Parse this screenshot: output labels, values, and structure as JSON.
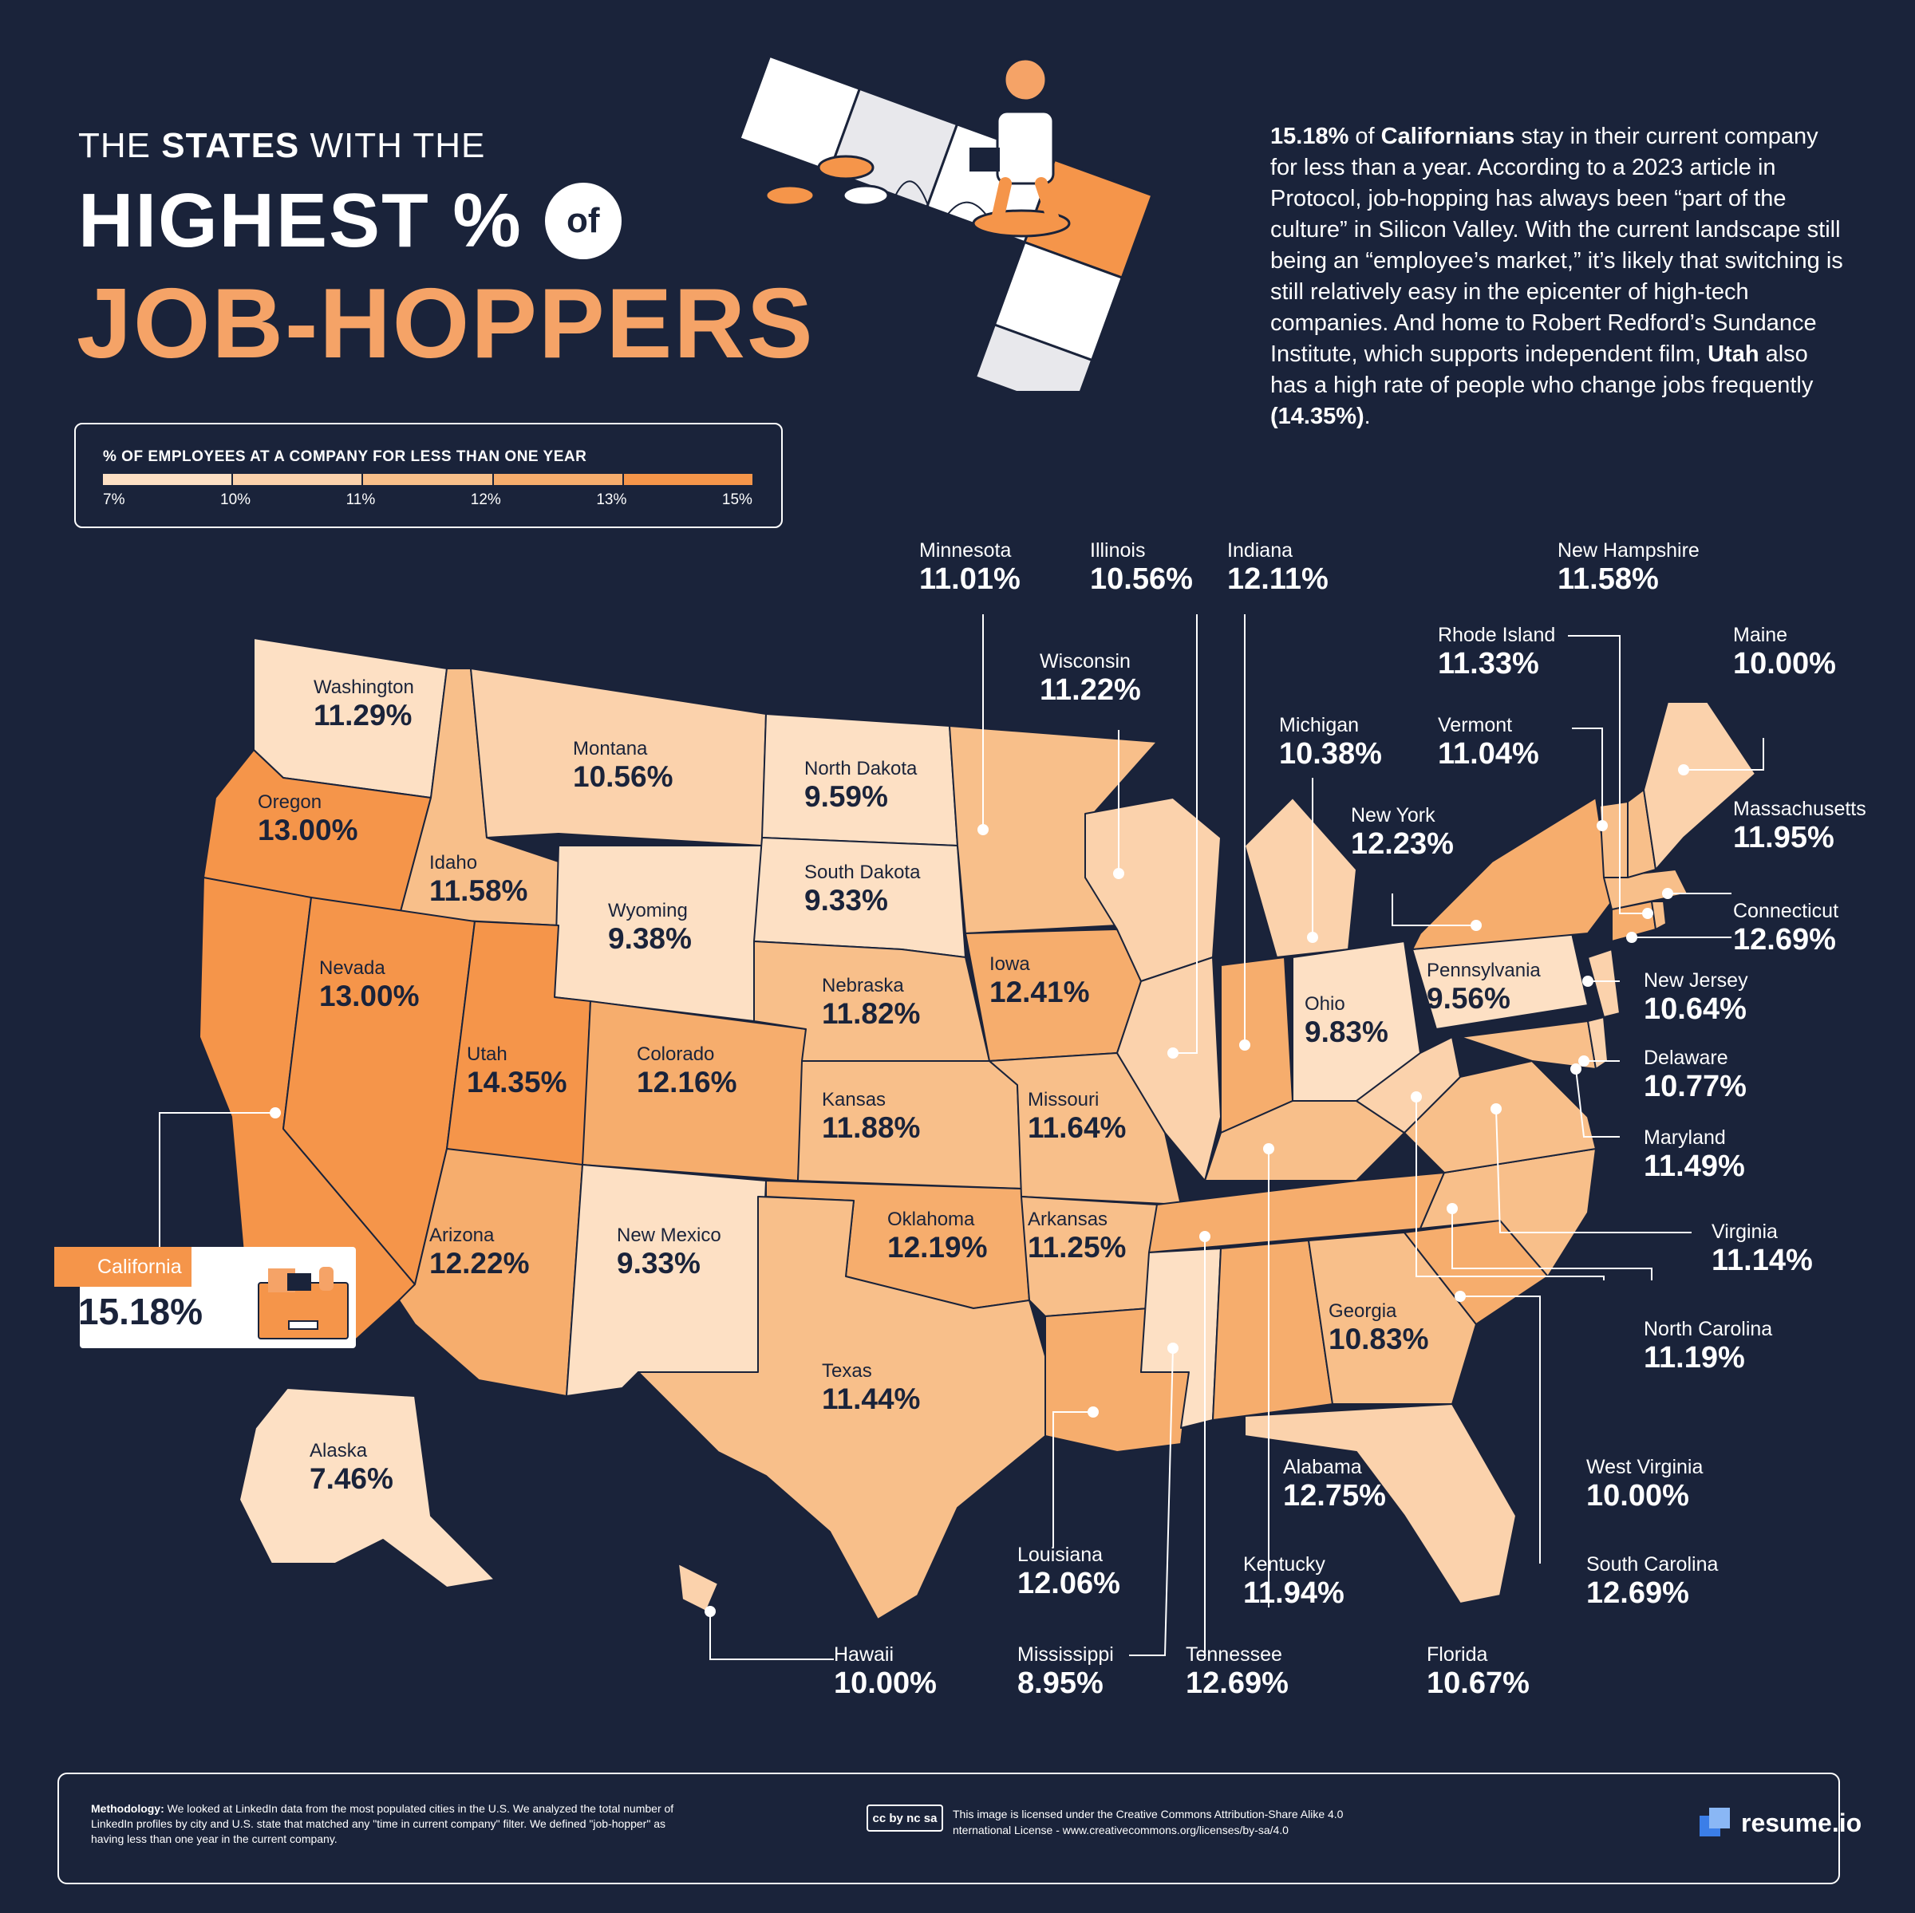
{
  "title": {
    "line1_pre": "THE ",
    "line1_bold": "STATES",
    "line1_post": " WITH THE",
    "line2": "HIGHEST %",
    "line2_circle": "of",
    "line3": "JOB-HOPPERS"
  },
  "intro": {
    "p1_bold": "15.18%",
    "p2": " of ",
    "p3_bold": "Californians",
    "p4": " stay in their current company for less than a year. According to a 2023 article in Protocol, job-hopping has always been “part of the culture” in Silicon Valley. With the current landscape still being an “employee’s market,” it’s likely that switching is still relatively easy in the epicenter of high-tech companies. And home to Robert Redford’s Sundance Institute, which supports independent film, ",
    "p5_bold": "Utah",
    "p6": " also has a high rate of people who change jobs frequently ",
    "p7_bold": "(14.35%)",
    "p8": "."
  },
  "legend": {
    "title": "% OF EMPLOYEES AT A COMPANY FOR LESS THAN ONE YEAR",
    "ticks": [
      "7%",
      "10%",
      "11%",
      "12%",
      "13%",
      "15%"
    ],
    "colors": [
      "#fde0c4",
      "#fbd2ac",
      "#f8bf8a",
      "#f6ad6d",
      "#f5954a"
    ]
  },
  "colors": {
    "background": "#1a233a",
    "accent_orange": "#f5a367",
    "darkest_orange": "#f5954a"
  },
  "states": {
    "washington": {
      "name": "Washington",
      "value": "11.29%"
    },
    "oregon": {
      "name": "Oregon",
      "value": "13.00%"
    },
    "idaho": {
      "name": "Idaho",
      "value": "11.58%"
    },
    "montana": {
      "name": "Montana",
      "value": "10.56%"
    },
    "north_dakota": {
      "name": "North Dakota",
      "value": "9.59%"
    },
    "south_dakota": {
      "name": "South Dakota",
      "value": "9.33%"
    },
    "wyoming": {
      "name": "Wyoming",
      "value": "9.38%"
    },
    "nevada": {
      "name": "Nevada",
      "value": "13.00%"
    },
    "utah": {
      "name": "Utah",
      "value": "14.35%"
    },
    "colorado": {
      "name": "Colorado",
      "value": "12.16%"
    },
    "nebraska": {
      "name": "Nebraska",
      "value": "11.82%"
    },
    "iowa": {
      "name": "Iowa",
      "value": "12.41%"
    },
    "kansas": {
      "name": "Kansas",
      "value": "11.88%"
    },
    "missouri": {
      "name": "Missouri",
      "value": "11.64%"
    },
    "arizona": {
      "name": "Arizona",
      "value": "12.22%"
    },
    "new_mexico": {
      "name": "New Mexico",
      "value": "9.33%"
    },
    "oklahoma": {
      "name": "Oklahoma",
      "value": "12.19%"
    },
    "arkansas": {
      "name": "Arkansas",
      "value": "11.25%"
    },
    "texas": {
      "name": "Texas",
      "value": "11.44%"
    },
    "georgia": {
      "name": "Georgia",
      "value": "10.83%"
    },
    "ohio": {
      "name": "Ohio",
      "value": "9.83%"
    },
    "pennsylvania": {
      "name": "Pennsylvania",
      "value": "9.56%"
    },
    "alaska": {
      "name": "Alaska",
      "value": "7.46%"
    },
    "california": {
      "name": "California",
      "value": "15.18%"
    },
    "minnesota": {
      "name": "Minnesota",
      "value": "11.01%"
    },
    "illinois": {
      "name": "Illinois",
      "value": "10.56%"
    },
    "indiana": {
      "name": "Indiana",
      "value": "12.11%"
    },
    "wisconsin": {
      "name": "Wisconsin",
      "value": "11.22%"
    },
    "michigan": {
      "name": "Michigan",
      "value": "10.38%"
    },
    "new_york": {
      "name": "New York",
      "value": "12.23%"
    },
    "new_hampshire": {
      "name": "New Hampshire",
      "value": "11.58%"
    },
    "rhode_island": {
      "name": "Rhode Island",
      "value": "11.33%"
    },
    "maine": {
      "name": "Maine",
      "value": "10.00%"
    },
    "vermont": {
      "name": "Vermont",
      "value": "11.04%"
    },
    "massachusetts": {
      "name": "Massachusetts",
      "value": "11.95%"
    },
    "connecticut": {
      "name": "Connecticut",
      "value": "12.69%"
    },
    "new_jersey": {
      "name": "New Jersey",
      "value": "10.64%"
    },
    "delaware": {
      "name": "Delaware",
      "value": "10.77%"
    },
    "maryland": {
      "name": "Maryland",
      "value": "11.49%"
    },
    "virginia": {
      "name": "Virginia",
      "value": "11.14%"
    },
    "north_carolina": {
      "name": "North Carolina",
      "value": "11.19%"
    },
    "west_virginia": {
      "name": "West Virginia",
      "value": "10.00%"
    },
    "south_carolina": {
      "name": "South Carolina",
      "value": "12.69%"
    },
    "alabama": {
      "name": "Alabama",
      "value": "12.75%"
    },
    "kentucky": {
      "name": "Kentucky",
      "value": "11.94%"
    },
    "louisiana": {
      "name": "Louisiana",
      "value": "12.06%"
    },
    "mississippi": {
      "name": "Mississippi",
      "value": "8.95%"
    },
    "tennessee": {
      "name": "Tennessee",
      "value": "12.69%"
    },
    "florida": {
      "name": "Florida",
      "value": "10.67%"
    },
    "hawaii": {
      "name": "Hawaii",
      "value": "10.00%"
    }
  },
  "footer": {
    "method_bold": "Methodology:",
    "method_text": " We looked at LinkedIn data from the most populated cities in the U.S. We analyzed the total number of LinkedIn profiles by city and U.S. state that matched any \"time in current company\" filter. We defined \"job-hopper\" as having less than one year in the current company.",
    "cc_badge": "cc by nc sa",
    "license_line1": "This image is licensed under the Creative Commons Attribution-Share Alike 4.0",
    "license_line2": "nternational License - www.creativecommons.org/licenses/by-sa/4.0",
    "brand": "resume.io"
  }
}
